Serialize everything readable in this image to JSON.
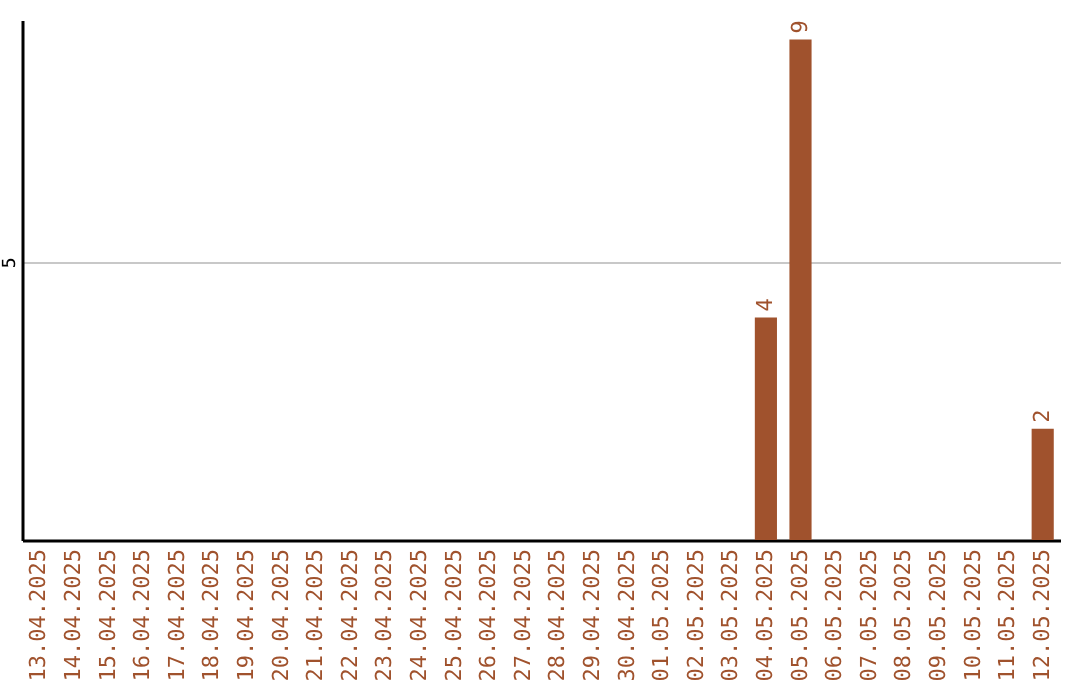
{
  "chart_data": {
    "type": "bar",
    "categories": [
      "13.04.2025",
      "14.04.2025",
      "15.04.2025",
      "16.04.2025",
      "17.04.2025",
      "18.04.2025",
      "19.04.2025",
      "20.04.2025",
      "21.04.2025",
      "22.04.2025",
      "23.04.2025",
      "24.04.2025",
      "25.04.2025",
      "26.04.2025",
      "27.04.2025",
      "28.04.2025",
      "29.04.2025",
      "30.04.2025",
      "01.05.2025",
      "02.05.2025",
      "03.05.2025",
      "04.05.2025",
      "05.05.2025",
      "06.05.2025",
      "07.05.2025",
      "08.05.2025",
      "09.05.2025",
      "10.05.2025",
      "11.05.2025",
      "12.05.2025"
    ],
    "values": [
      null,
      null,
      null,
      null,
      null,
      null,
      null,
      null,
      null,
      null,
      null,
      null,
      null,
      null,
      null,
      null,
      null,
      null,
      null,
      null,
      null,
      4,
      9,
      null,
      null,
      null,
      null,
      null,
      null,
      2
    ],
    "data_labels": true,
    "color": "#a0522d",
    "ylim": [
      0,
      9.35
    ],
    "yticks": [
      5
    ],
    "grid": "y"
  }
}
